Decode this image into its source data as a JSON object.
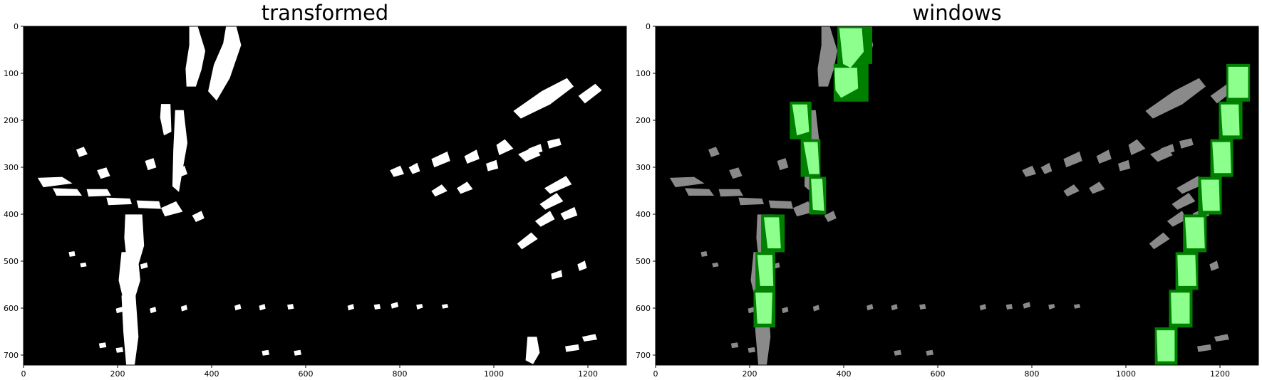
{
  "figure": {
    "panels": [
      {
        "title": "transformed",
        "x_ticks": [
          "0",
          "200",
          "400",
          "600",
          "800",
          "1000",
          "1200"
        ],
        "y_ticks": [
          "0",
          "100",
          "200",
          "300",
          "400",
          "500",
          "600",
          "700"
        ]
      },
      {
        "title": "windows",
        "x_ticks": [
          "0",
          "200",
          "400",
          "600",
          "800",
          "1000",
          "1200"
        ],
        "y_ticks": [
          "0",
          "100",
          "200",
          "300",
          "400",
          "500",
          "600",
          "700"
        ]
      }
    ],
    "colors": {
      "background": "#000000",
      "lane_pixels": "#ffffff",
      "window_pixels_dim": "#8a8a8a",
      "window_box": "#008000",
      "window_highlight": "#8cff8c"
    },
    "image_units": {
      "width": 1280,
      "height": 720
    }
  }
}
